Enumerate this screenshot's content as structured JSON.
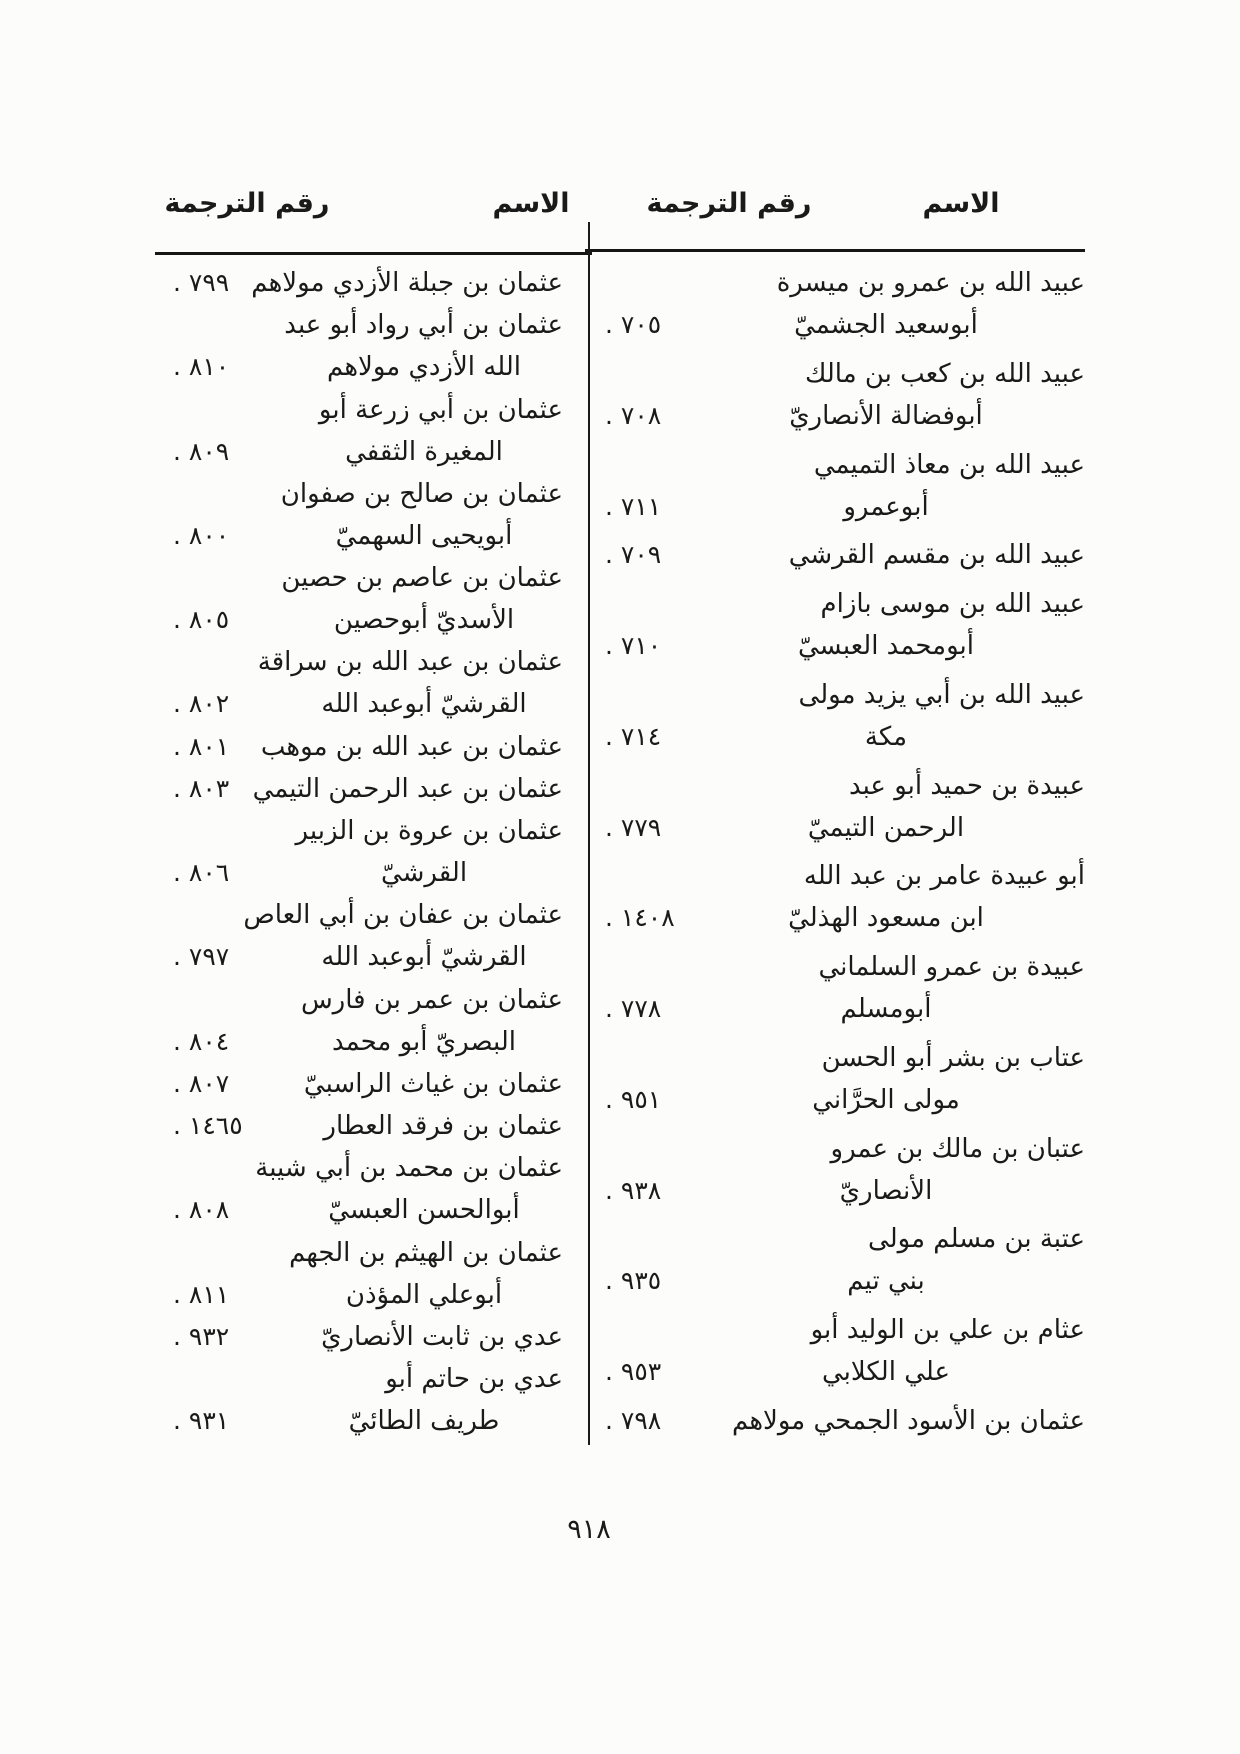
{
  "page": {
    "page_number": "٩١٨",
    "colors": {
      "ink": "#1a1a1a",
      "paper": "#fcfcfa"
    }
  },
  "table": {
    "right_section": {
      "header": {
        "name_label": "الاسم",
        "number_label": "رقم الترجمة"
      },
      "entries": [
        {
          "name_line1": "عبيد الله بن عمرو بن ميسرة",
          "name_line2": "أبوسعيد الجشميّ",
          "number": ". ٧٠٥"
        },
        {
          "name_line1": "عبيد الله بن كعب بن مالك",
          "name_line2": "أبوفضالة الأنصاريّ",
          "number": ". ٧٠٨"
        },
        {
          "name_line1": "عبيد الله بن معاذ التميمي",
          "name_line2": "أبوعمرو",
          "number": ". ٧١١"
        },
        {
          "name_line1": "عبيد الله بن مقسم القرشي",
          "number": ". ٧٠٩"
        },
        {
          "name_line1": "عبيد الله بن موسى بازام",
          "name_line2": "أبومحمد العبسيّ",
          "number": ". ٧١٠"
        },
        {
          "name_line1": "عبيد الله بن أبي يزيد مولى",
          "name_line2": "مكة",
          "number": ". ٧١٤"
        },
        {
          "name_line1": "عبيدة بن حميد أبو عبد",
          "name_line2": "الرحمن التيميّ",
          "number": ". ٧٧٩"
        },
        {
          "name_line1": "أبو عبيدة عامر بن عبد الله",
          "name_line2": "ابن مسعود الهذليّ",
          "number": ". ١٤٠٨"
        },
        {
          "name_line1": "عبيدة بن عمرو السلماني",
          "name_line2": "أبومسلم",
          "number": ". ٧٧٨"
        },
        {
          "name_line1": "عتاب بن بشر أبو الحسن",
          "name_line2": "مولى الحرَّاني",
          "number": ". ٩٥١"
        },
        {
          "name_line1": "عتبان بن مالك بن عمرو",
          "name_line2": "الأنصاريّ",
          "number": ". ٩٣٨"
        },
        {
          "name_line1": "عتبة بن مسلم مولى",
          "name_line2": "بني تيم",
          "number": ". ٩٣٥"
        },
        {
          "name_line1": "عثام بن علي بن الوليد أبو",
          "name_line2": "علي الكلابي",
          "number": ". ٩٥٣"
        },
        {
          "name_line1": "عثمان بن الأسود الجمحي مولاهم",
          "number": ". ٧٩٨"
        }
      ]
    },
    "left_section": {
      "header": {
        "name_label": "الاسم",
        "number_label": "رقم الترجمة"
      },
      "entries": [
        {
          "name_line1": "عثمان بن جبلة الأزدي مولاهم",
          "number": ". ٧٩٩"
        },
        {
          "name_line1": "عثمان بن أبي رواد أبو عبد",
          "name_line2": "الله الأزدي مولاهم",
          "number": ". ٨١٠"
        },
        {
          "name_line1": "عثمان بن أبي زرعة أبو",
          "name_line2": "المغيرة الثقفي",
          "number": ". ٨٠٩"
        },
        {
          "name_line1": "عثمان بن صالح بن صفوان",
          "name_line2": "أبويحيى السهميّ",
          "number": ". ٨٠٠"
        },
        {
          "name_line1": "عثمان بن عاصم بن حصين",
          "name_line2": "الأسديّ أبوحصين",
          "number": ". ٨٠٥"
        },
        {
          "name_line1": "عثمان بن عبد الله بن سراقة",
          "name_line2": "القرشيّ أبوعبد الله",
          "number": ". ٨٠٢"
        },
        {
          "name_line1": "عثمان بن عبد الله بن موهب",
          "number": ". ٨٠١"
        },
        {
          "name_line1": "عثمان بن عبد الرحمن التيمي",
          "number": ". ٨٠٣"
        },
        {
          "name_line1": "عثمان بن عروة بن الزبير",
          "name_line2": "القرشيّ",
          "number": ". ٨٠٦"
        },
        {
          "name_line1": "عثمان بن عفان بن أبي العاص",
          "name_line2": "القرشيّ أبوعبد الله",
          "number": ". ٧٩٧"
        },
        {
          "name_line1": "عثمان بن عمر بن فارس",
          "name_line2": "البصريّ أبو محمد",
          "number": ". ٨٠٤"
        },
        {
          "name_line1": "عثمان بن غياث الراسبيّ",
          "number": ". ٨٠٧"
        },
        {
          "name_line1": "عثمان بن فرقد العطار",
          "number": ". ١٤٦٥"
        },
        {
          "name_line1": "عثمان بن محمد بن أبي شيبة",
          "name_line2": "أبوالحسن العبسيّ",
          "number": ". ٨٠٨"
        },
        {
          "name_line1": "عثمان بن الهيثم بن الجهم",
          "name_line2": "أبوعلي المؤذن",
          "number": ". ٨١١"
        },
        {
          "name_line1": "عدي بن ثابت الأنصاريّ",
          "number": ". ٩٣٢"
        },
        {
          "name_line1": "عدي بن حاتم أبو",
          "name_line2": "طريف الطائيّ",
          "number": ". ٩٣١"
        }
      ]
    }
  }
}
